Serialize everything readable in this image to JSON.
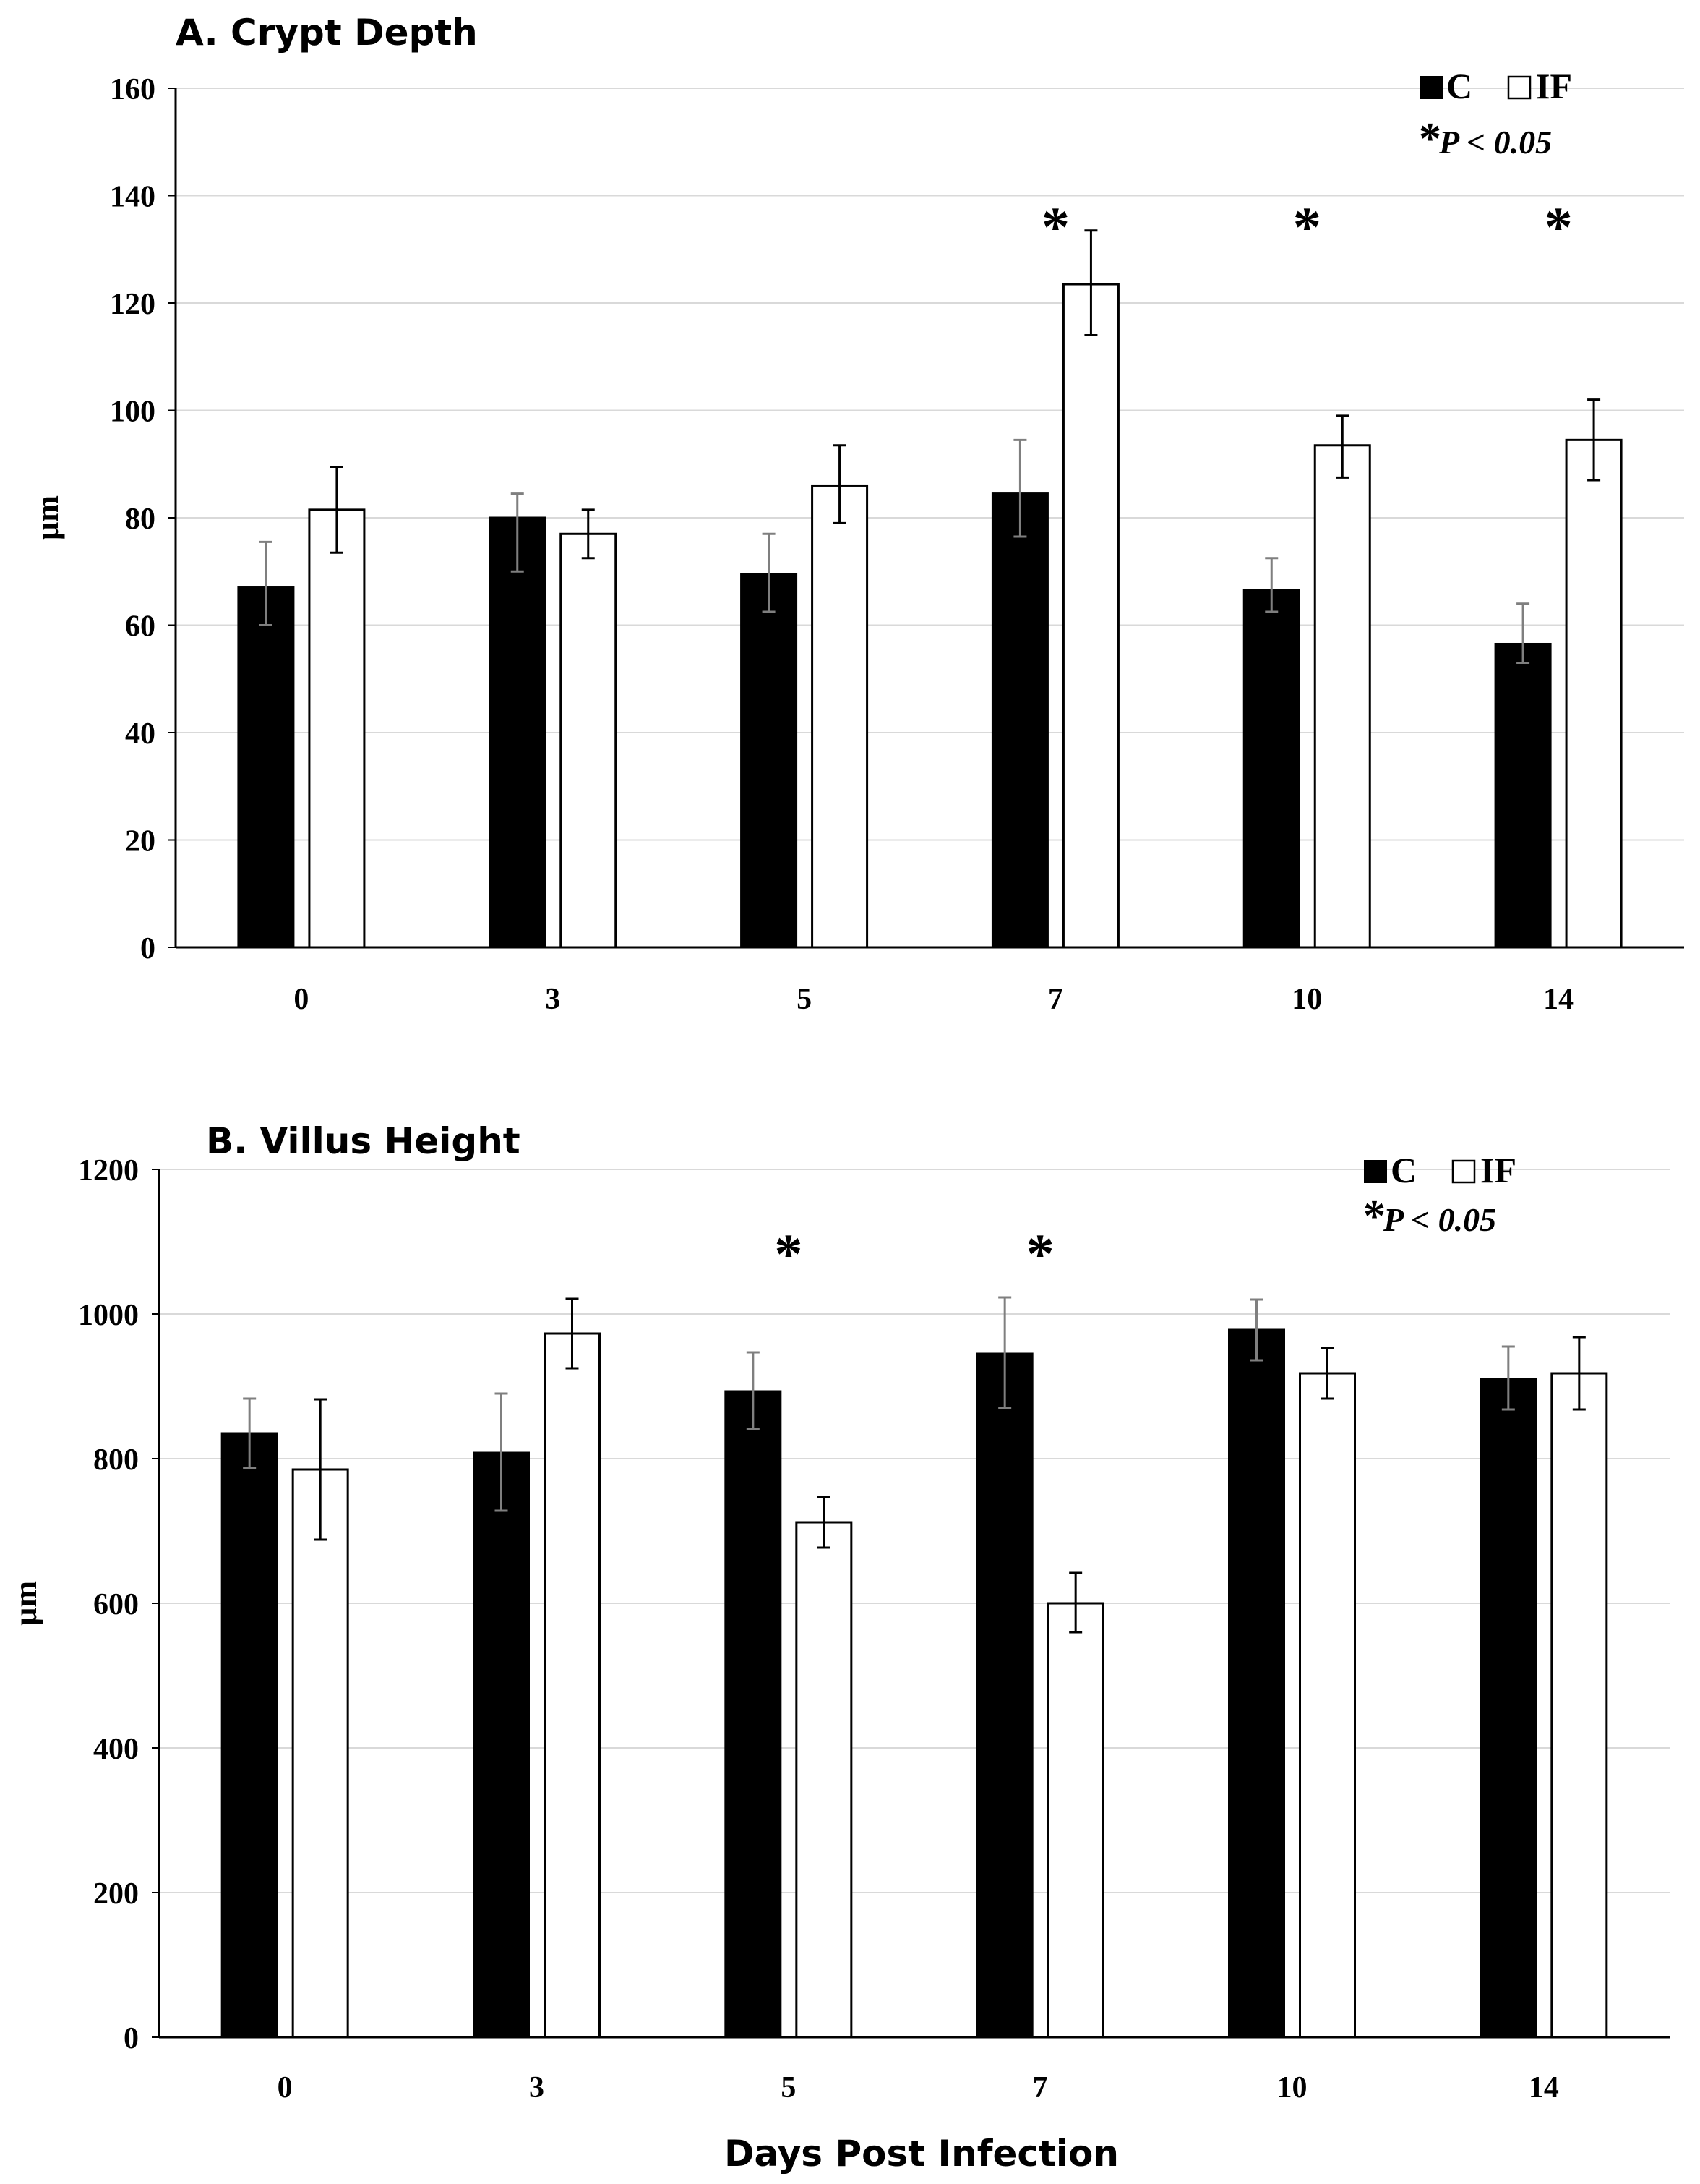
{
  "chart_data": [
    {
      "type": "bar",
      "title": "A. Crypt Depth",
      "xlabel": "",
      "ylabel": "µm",
      "ylim": [
        0,
        160
      ],
      "yticks": [
        0,
        20,
        40,
        60,
        80,
        100,
        120,
        140,
        160
      ],
      "categories": [
        "0",
        "3",
        "5",
        "7",
        "10",
        "14"
      ],
      "series": [
        {
          "name": "C",
          "color": "#000000",
          "values": [
            67,
            80,
            69.5,
            84.5,
            66.5,
            56.5
          ],
          "err_up": [
            8.5,
            4.5,
            7.5,
            10,
            6,
            7.5
          ],
          "err_down": [
            7,
            10,
            7,
            8,
            4,
            3.5
          ]
        },
        {
          "name": "IF",
          "color": "#ffffff",
          "values": [
            81.5,
            77,
            86,
            123.5,
            93.5,
            94.5
          ],
          "err_up": [
            8,
            4.5,
            7.5,
            10,
            5.5,
            7.5
          ],
          "err_down": [
            8,
            4.5,
            7,
            9.5,
            6,
            7.5
          ]
        }
      ],
      "significant": [
        "7",
        "10",
        "14"
      ],
      "legend": {
        "c_label": "C",
        "if_label": "IF",
        "star": "*",
        "pvalue": "P < 0.05",
        "position": "top-right"
      },
      "star_symbol": "*"
    },
    {
      "type": "bar",
      "title": "B. Villus Height",
      "xlabel": "Days Post Infection",
      "ylabel": "µm",
      "ylim": [
        0,
        1200
      ],
      "yticks": [
        0,
        200,
        400,
        600,
        800,
        1000,
        1200
      ],
      "categories": [
        "0",
        "3",
        "5",
        "7",
        "10",
        "14"
      ],
      "series": [
        {
          "name": "C",
          "color": "#000000",
          "values": [
            835,
            808,
            893,
            945,
            978,
            910
          ],
          "err_up": [
            48,
            82,
            54,
            78,
            42,
            45
          ],
          "err_down": [
            48,
            80,
            52,
            75,
            42,
            42
          ]
        },
        {
          "name": "IF",
          "color": "#ffffff",
          "values": [
            785,
            973,
            712,
            600,
            918,
            918
          ],
          "err_up": [
            97,
            48,
            35,
            42,
            35,
            50
          ],
          "err_down": [
            97,
            48,
            35,
            40,
            35,
            50
          ]
        }
      ],
      "significant": [
        "5",
        "7"
      ],
      "legend": {
        "c_label": "C",
        "if_label": "IF",
        "star": "*",
        "pvalue": "P < 0.05",
        "position": "top-right"
      },
      "star_symbol": "*"
    }
  ]
}
